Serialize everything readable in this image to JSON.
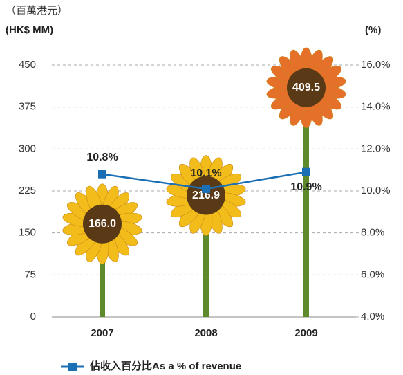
{
  "chart_data": {
    "type": "bar",
    "y_label_zh": "（百萬港元）",
    "y_label": "(HK$ MM)",
    "y2_label": "(%)",
    "categories": [
      "2007",
      "2008",
      "2009"
    ],
    "series": [
      {
        "values": [
          166.0,
          216.9,
          409.5
        ],
        "value_labels": [
          "166.0",
          "216.9",
          "409.5"
        ],
        "colors": [
          "#f2bd1a",
          "#f2bd1a",
          "#e5702a"
        ]
      },
      {
        "type": "line",
        "name": "佔收入百分比As a % of revenue",
        "color": "#1b6fb5",
        "axis": "y2",
        "values": [
          10.8,
          10.1,
          10.9
        ],
        "value_labels": [
          "10.8%",
          "10.1%",
          "10.9%"
        ]
      }
    ],
    "ylim": [
      0,
      450
    ],
    "yticks": [
      0,
      75,
      150,
      225,
      300,
      375,
      450
    ],
    "y2lim": [
      4,
      16
    ],
    "y2ticks": [
      {
        "value": 4,
        "label": "4.0%"
      },
      {
        "value": 6,
        "label": "6.0%"
      },
      {
        "value": 8,
        "label": "8.0%"
      },
      {
        "value": 10,
        "label": "10.0%"
      },
      {
        "value": 12,
        "label": "12.0%"
      },
      {
        "value": 14,
        "label": "14.0%"
      },
      {
        "value": 16,
        "label": "16.0%"
      }
    ],
    "grid": true
  }
}
